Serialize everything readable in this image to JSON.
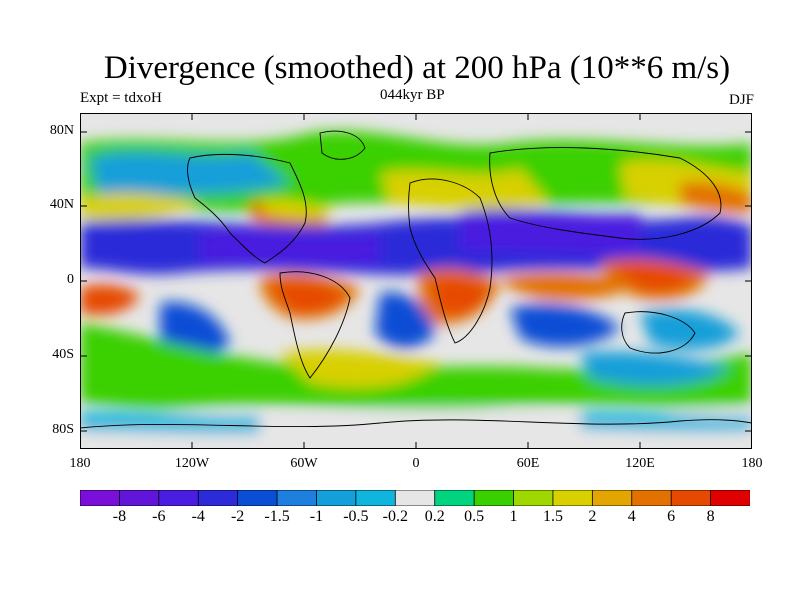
{
  "title": "Divergence (smoothed) at 200 hPa (10**6 m/s)",
  "experiment_label": "Expt = tdxoH",
  "time_label": "044kyr BP",
  "season_label": "DJF",
  "lat_ticks": [
    "80N",
    "40N",
    "0",
    "40S",
    "80S"
  ],
  "lon_ticks": [
    "180",
    "120W",
    "60W",
    "0",
    "60E",
    "120E",
    "180"
  ],
  "colors": {
    "levels": [
      "#7a0fd9",
      "#6015d8",
      "#4a1ee0",
      "#2c2ad9",
      "#0a4ed6",
      "#1e7fde",
      "#139fd9",
      "#10b5dd",
      "#e6e6e6",
      "#00d47f",
      "#3ad000",
      "#9fd800",
      "#d8d000",
      "#e3a500",
      "#e37100",
      "#e64900",
      "#e00000"
    ],
    "background": "#e6e6e6",
    "coastline": "#000000"
  },
  "colorbar": {
    "labels": [
      "-8",
      "-6",
      "-4",
      "-2",
      "-1.5",
      "-1",
      "-0.5",
      "-0.2",
      "0.2",
      "0.5",
      "1",
      "1.5",
      "2",
      "4",
      "6",
      "8"
    ]
  }
}
